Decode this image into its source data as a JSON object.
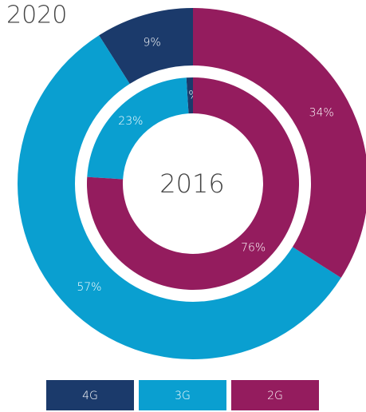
{
  "chart_data": {
    "type": "donut",
    "categories": [
      "4G",
      "3G",
      "2G"
    ],
    "colors": [
      "#1b3a6b",
      "#0a9fd0",
      "#941c5e"
    ],
    "rings": [
      {
        "name": "2020",
        "values": [
          9,
          57,
          34
        ],
        "value_labels": [
          "9%",
          "57%",
          "34%"
        ]
      },
      {
        "name": "2016",
        "values": [
          1,
          23,
          76
        ],
        "value_labels": [
          "1%",
          "23%",
          "76%"
        ]
      }
    ]
  }
}
